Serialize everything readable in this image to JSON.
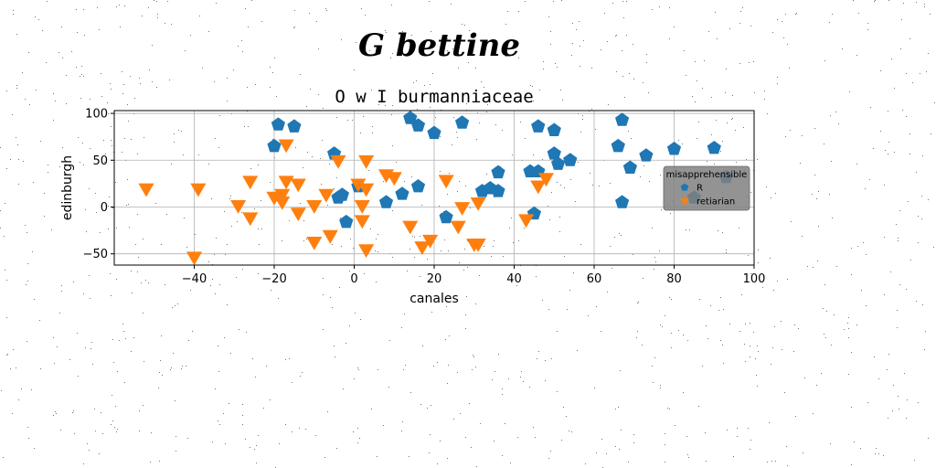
{
  "figure": {
    "suptitle": "G bettine"
  },
  "chart_data": {
    "type": "scatter",
    "title": "O w I burmanniaceae",
    "xlabel": "canales",
    "ylabel": "edinburgh",
    "xlim": [
      -60,
      100
    ],
    "ylim": [
      -62,
      103
    ],
    "xticks": [
      -40,
      -20,
      0,
      20,
      40,
      60,
      80,
      100
    ],
    "yticks": [
      -50,
      0,
      50,
      100
    ],
    "grid": true,
    "legend": {
      "title": "misapprehensible",
      "placement": "center-right"
    },
    "series": [
      {
        "name": "R",
        "marker": "pentagon",
        "color": "#1f77b4",
        "points": [
          [
            -19,
            88
          ],
          [
            -15,
            86
          ],
          [
            -20,
            65
          ],
          [
            -5,
            57
          ],
          [
            -4,
            10
          ],
          [
            -3,
            13
          ],
          [
            -2,
            -16
          ],
          [
            1,
            22
          ],
          [
            8,
            5
          ],
          [
            12,
            14
          ],
          [
            14,
            95
          ],
          [
            16,
            87
          ],
          [
            16,
            22
          ],
          [
            20,
            79
          ],
          [
            23,
            -11
          ],
          [
            27,
            90
          ],
          [
            32,
            17
          ],
          [
            34,
            20
          ],
          [
            36,
            37
          ],
          [
            36,
            17
          ],
          [
            44,
            38
          ],
          [
            45,
            -7
          ],
          [
            46,
            86
          ],
          [
            46,
            38
          ],
          [
            50,
            82
          ],
          [
            50,
            57
          ],
          [
            51,
            46
          ],
          [
            54,
            50
          ],
          [
            66,
            65
          ],
          [
            67,
            93
          ],
          [
            67,
            5
          ],
          [
            69,
            42
          ],
          [
            73,
            55
          ],
          [
            80,
            62
          ],
          [
            90,
            63
          ],
          [
            85,
            10
          ],
          [
            93,
            32
          ]
        ]
      },
      {
        "name": "retiarian",
        "marker": "triangle-down",
        "color": "#ff7f0e",
        "points": [
          [
            -52,
            20
          ],
          [
            -39,
            20
          ],
          [
            -40,
            -53
          ],
          [
            -29,
            2
          ],
          [
            -26,
            28
          ],
          [
            -26,
            -11
          ],
          [
            -20,
            11
          ],
          [
            -18,
            14
          ],
          [
            -18,
            6
          ],
          [
            -17,
            67
          ],
          [
            -17,
            28
          ],
          [
            -14,
            25
          ],
          [
            -14,
            -6
          ],
          [
            -10,
            2
          ],
          [
            -10,
            -37
          ],
          [
            -7,
            14
          ],
          [
            -6,
            -30
          ],
          [
            -4,
            50
          ],
          [
            1,
            25
          ],
          [
            2,
            2
          ],
          [
            2,
            -14
          ],
          [
            3,
            50
          ],
          [
            3,
            20
          ],
          [
            3,
            -45
          ],
          [
            8,
            35
          ],
          [
            10,
            32
          ],
          [
            14,
            -20
          ],
          [
            17,
            -42
          ],
          [
            19,
            -35
          ],
          [
            23,
            29
          ],
          [
            26,
            -20
          ],
          [
            27,
            0
          ],
          [
            30,
            -39
          ],
          [
            31,
            -39
          ],
          [
            31,
            5
          ],
          [
            43,
            -13
          ],
          [
            46,
            23
          ],
          [
            48,
            31
          ]
        ]
      }
    ]
  }
}
